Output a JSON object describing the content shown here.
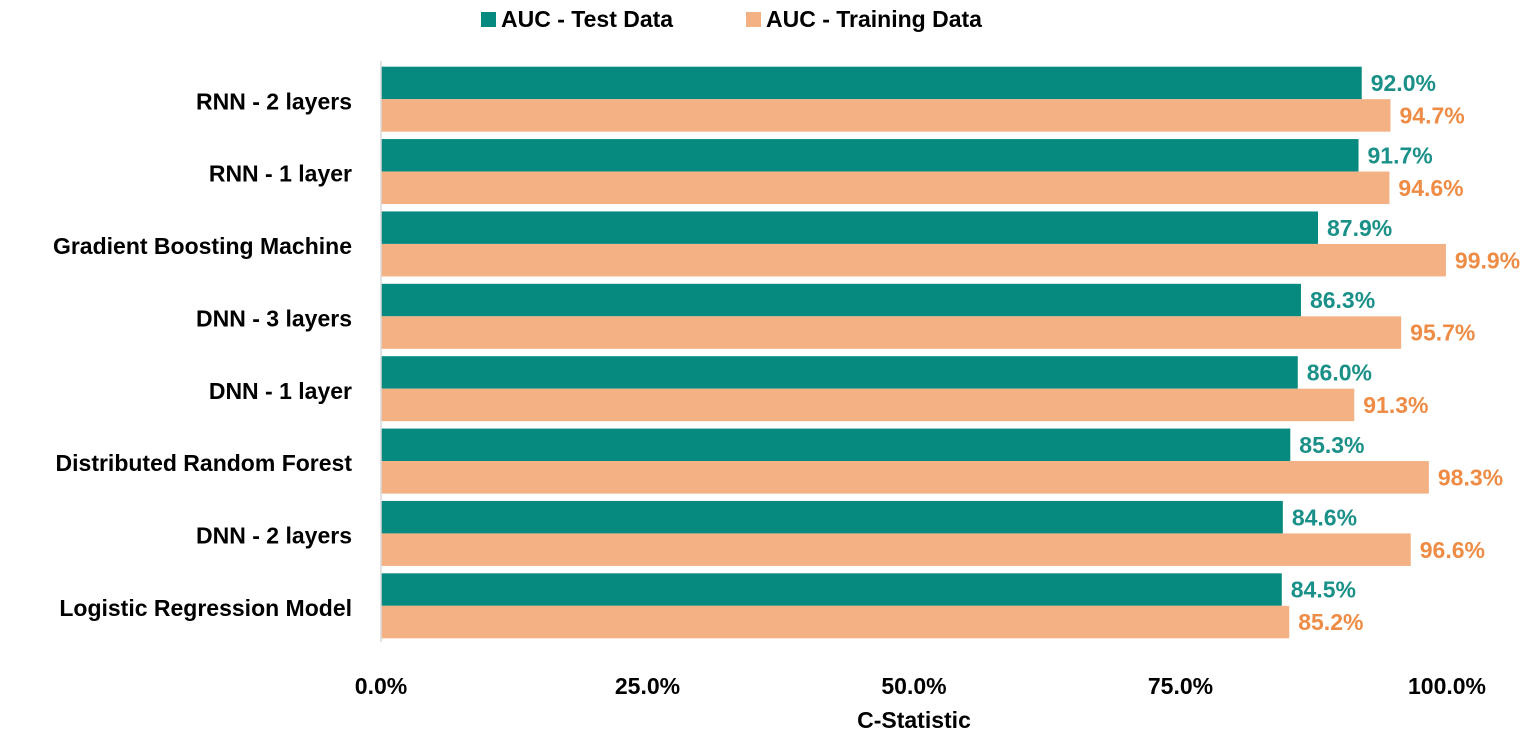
{
  "chart_data": {
    "type": "hbar",
    "categories": [
      "RNN - 2 layers",
      "RNN - 1 layer",
      "Gradient Boosting Machine",
      "DNN - 3 layers",
      "DNN - 1 layer",
      "Distributed Random Forest",
      "DNN - 2 layers",
      "Logistic Regression Model"
    ],
    "series": [
      {
        "name": "AUC - Test Data",
        "color": "#068a80",
        "label_color": "#1a9088",
        "values": [
          92.0,
          91.7,
          87.9,
          86.3,
          86.0,
          85.3,
          84.6,
          84.5
        ],
        "value_labels": [
          "92.0%",
          "91.7%",
          "87.9%",
          "86.3%",
          "86.0%",
          "85.3%",
          "84.6%",
          "84.5%"
        ]
      },
      {
        "name": "AUC - Training Data",
        "color": "#f4b183",
        "label_color": "#ee8c46",
        "values": [
          94.7,
          94.6,
          99.9,
          95.7,
          91.3,
          98.3,
          96.6,
          85.2
        ],
        "value_labels": [
          "94.7%",
          "94.6%",
          "99.9%",
          "95.7%",
          "91.3%",
          "98.3%",
          "96.6%",
          "85.2%"
        ]
      }
    ],
    "xlabel": "C-Statistic",
    "xlim": [
      0,
      100
    ],
    "xticks": [
      {
        "value": 0,
        "label": "0.0%"
      },
      {
        "value": 25,
        "label": "25.0%"
      },
      {
        "value": 50,
        "label": "50.0%"
      },
      {
        "value": 75,
        "label": "75.0%"
      },
      {
        "value": 100,
        "label": "100.0%"
      }
    ],
    "legend": "top"
  }
}
